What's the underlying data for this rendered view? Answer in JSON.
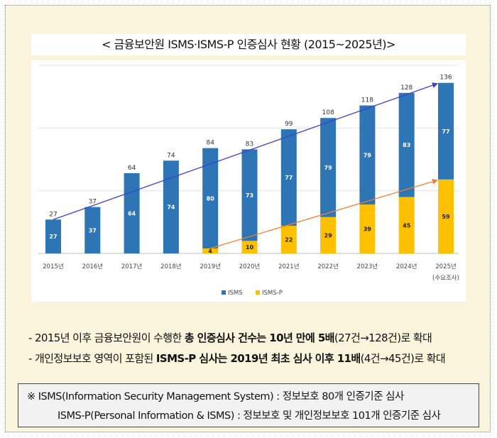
{
  "title": "< 금융보안원 ISMS·ISMS-P 인증심사 현황 (2015~2025년)>",
  "chart_data": {
    "type": "bar",
    "stacked": true,
    "categories": [
      "2015년",
      "2016년",
      "2017년",
      "2018년",
      "2019년",
      "2020년",
      "2021년",
      "2022년",
      "2023년",
      "2024년",
      "2025년"
    ],
    "category_sublabels": {
      "2025년": "(수요조사)"
    },
    "series": [
      {
        "name": "ISMS-P",
        "color": "#ffc000",
        "values": [
          0,
          0,
          0,
          0,
          4,
          10,
          22,
          29,
          39,
          45,
          59
        ]
      },
      {
        "name": "ISMS",
        "color": "#2e75b6",
        "values": [
          27,
          37,
          64,
          74,
          80,
          73,
          77,
          79,
          79,
          83,
          77
        ]
      }
    ],
    "totals": [
      27,
      37,
      64,
      74,
      84,
      83,
      99,
      108,
      118,
      128,
      136
    ],
    "legend_order": [
      "ISMS",
      "ISMS-P"
    ],
    "legend_position": "bottom",
    "ylim": [
      0,
      150
    ],
    "grid": true,
    "trend_arrows": [
      {
        "color": "#4040d0",
        "from_category": "2015년",
        "to_category": "2025년",
        "from_value": 27,
        "to_value": 136
      },
      {
        "color": "#f08030",
        "from_category": "2019년",
        "to_category": "2025년",
        "from_value": 4,
        "to_value": 59
      }
    ]
  },
  "bullets": [
    {
      "prefix": "- 2015년 이후 금융보안원이 수행한 ",
      "bold": "총 인증심사 건수는 10년 만에 5배",
      "suffix": "(27건→128건)로 확대"
    },
    {
      "prefix": "- 개인정보보호 영역이 포함된 ",
      "bold": "ISMS-P 심사는 2019년 최초 심사 이후 11배",
      "suffix": "(4건→45건)로 확대"
    }
  ],
  "note": {
    "line1": "※  ISMS(Information Security Management System) : 정보보호 80개 인증기준 심사",
    "line2": "ISMS-P(Personal Information & ISMS) : 정보보호 및 개인정보보호 101개 인증기준 심사"
  }
}
